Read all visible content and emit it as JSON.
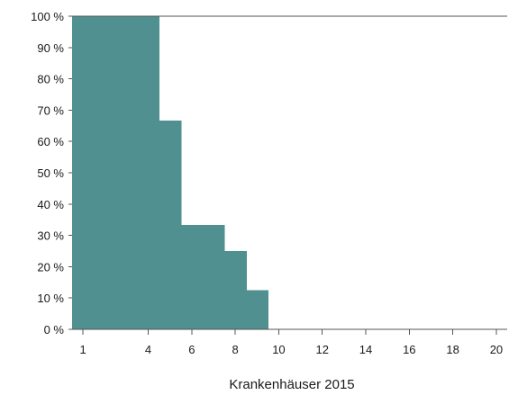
{
  "chart_data": {
    "type": "area",
    "step": true,
    "xlabel": "Krankenhäuser 2015",
    "ylabel": "",
    "title": "",
    "xlim": [
      0.5,
      20.5
    ],
    "ylim": [
      0,
      100
    ],
    "x_ticks": [
      1,
      4,
      6,
      8,
      10,
      12,
      14,
      16,
      18,
      20
    ],
    "y_ticks": [
      0,
      10,
      20,
      30,
      40,
      50,
      60,
      70,
      80,
      90,
      100
    ],
    "y_tick_suffix": " %",
    "grid": false,
    "fill_color": "#519090",
    "x": [
      1,
      2,
      3,
      4,
      5,
      6,
      7,
      8,
      9,
      10,
      11,
      12,
      13,
      14,
      15,
      16,
      17,
      18,
      19,
      20
    ],
    "values": [
      100,
      100,
      100,
      100,
      66.7,
      33.3,
      33.3,
      25,
      12.5,
      0,
      0,
      0,
      0,
      0,
      0,
      0,
      0,
      0,
      0,
      0
    ]
  }
}
